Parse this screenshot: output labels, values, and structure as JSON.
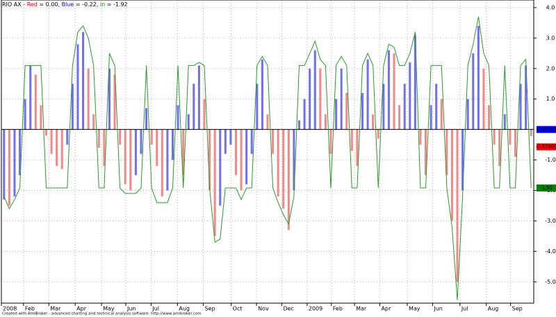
{
  "chart_data": {
    "type": "histogram-line",
    "title": [
      {
        "text": "RIO AX - "
      },
      {
        "text": "Red",
        "color": "#e00000"
      },
      {
        "text": " = 0.00, "
      },
      {
        "text": "Blue",
        "color": "#0000e0"
      },
      {
        "text": " = -0.22, "
      },
      {
        "text": "in",
        "color": "#008000"
      },
      {
        "text": " = -1.92"
      }
    ],
    "footer": "Created with AmiBroker - advanced charting and technical analysis software. http://www.amibroker.com",
    "xlim": [
      0,
      101
    ],
    "xticks": [
      {
        "value": 0,
        "label": "2008"
      },
      {
        "value": 4.2,
        "label": "Feb"
      },
      {
        "value": 9,
        "label": "Mar"
      },
      {
        "value": 14,
        "label": "Apr"
      },
      {
        "value": 19,
        "label": "May"
      },
      {
        "value": 23.6,
        "label": "Jun"
      },
      {
        "value": 28.4,
        "label": "Jul"
      },
      {
        "value": 33.4,
        "label": "Aug"
      },
      {
        "value": 38.3,
        "label": "Sep"
      },
      {
        "value": 43.6,
        "label": "Oct"
      },
      {
        "value": 48.4,
        "label": "Nov"
      },
      {
        "value": 53.2,
        "label": "Dec"
      },
      {
        "value": 58,
        "label": "2009"
      },
      {
        "value": 62.6,
        "label": "Feb"
      },
      {
        "value": 67,
        "label": "Mar"
      },
      {
        "value": 71.8,
        "label": "Apr"
      },
      {
        "value": 77,
        "label": "May"
      },
      {
        "value": 81.8,
        "label": "Jun"
      },
      {
        "value": 87,
        "label": "Jul"
      },
      {
        "value": 92,
        "label": "Aug"
      },
      {
        "value": 96.6,
        "label": "Sep"
      }
    ],
    "ylim": [
      -5.7,
      4.25
    ],
    "yticks": [
      {
        "value": -5,
        "label": "-5.0"
      },
      {
        "value": -4,
        "label": "-4.0"
      },
      {
        "value": -3,
        "label": "-3.0"
      },
      {
        "value": -2,
        "label": "-2.0"
      },
      {
        "value": -1,
        "label": "-1.0"
      },
      {
        "value": 1,
        "label": "1.0"
      },
      {
        "value": 2,
        "label": "2.0"
      },
      {
        "value": 3,
        "label": "3.0"
      },
      {
        "value": 4,
        "label": "4.0"
      }
    ],
    "grid": true,
    "histogram": {
      "up_color": "#7070f0",
      "down_color": "#f08a8a",
      "values": [
        -2.3,
        -2.5,
        -2.2,
        -1.5,
        1.0,
        2.1,
        1.8,
        0.8,
        -0.2,
        -0.8,
        -1.2,
        -1.3,
        -0.5,
        1.5,
        2.8,
        3.2,
        2.0,
        0.5,
        -0.6,
        -1.2,
        2.0,
        1.8,
        -0.5,
        -1.8,
        -2.0,
        -1.5,
        -0.8,
        0.7,
        -0.5,
        -1.2,
        -2.2,
        -2.0,
        -1.0,
        0.8,
        -1.5,
        0.5,
        1.5,
        2.1,
        1.0,
        -2.0,
        -3.5,
        -2.5,
        -0.8,
        -0.5,
        -1.5,
        -2.0,
        -1.8,
        -0.8,
        1.5,
        2.3,
        0.5,
        -0.8,
        -2.2,
        -2.6,
        -3.3,
        -2.0,
        0.3,
        1.0,
        2.0,
        2.6,
        2.0,
        0.5,
        -0.8,
        1.0,
        2.0,
        1.2,
        -0.7,
        -1.2,
        1.2,
        2.3,
        0.5,
        -0.3,
        1.5,
        2.6,
        2.5,
        0.8,
        1.5,
        2.2,
        3.1,
        -0.5,
        -1.5,
        0.8,
        1.5,
        1.0,
        -1.5,
        -3.0,
        -5.0,
        -2.0,
        1.0,
        2.5,
        3.4,
        2.0,
        0.8,
        -0.5,
        -1.2,
        0.5,
        -0.5,
        -0.9,
        1.5,
        2.1,
        -0.22
      ]
    },
    "line": {
      "color": "#2a9a2a",
      "values": [
        -2.2,
        -2.6,
        -2.3,
        -1.92,
        2.1,
        2.1,
        2.1,
        2.1,
        -1.92,
        -1.92,
        -1.92,
        -1.92,
        -1.92,
        2.1,
        3.2,
        3.4,
        3.0,
        2.1,
        -1.92,
        -1.92,
        2.5,
        2.1,
        -1.92,
        -2.1,
        -2.1,
        -2.1,
        -1.92,
        2.1,
        -1.92,
        -2.4,
        -2.4,
        -2.4,
        -1.92,
        2.1,
        -1.92,
        2.1,
        2.1,
        2.2,
        2.1,
        -1.92,
        -3.7,
        -3.6,
        -1.92,
        -1.92,
        -1.92,
        -2.3,
        -1.92,
        -1.92,
        2.1,
        2.4,
        2.1,
        -1.92,
        -2.4,
        -2.8,
        -3.1,
        -2.2,
        2.1,
        2.1,
        2.5,
        2.9,
        2.3,
        2.1,
        -1.92,
        2.1,
        2.4,
        2.1,
        -1.92,
        -1.92,
        2.1,
        2.5,
        2.1,
        -1.92,
        2.1,
        2.8,
        2.7,
        2.1,
        2.1,
        2.5,
        3.2,
        -1.92,
        -1.92,
        2.1,
        2.1,
        2.1,
        -1.92,
        -3.2,
        -5.6,
        -2.2,
        2.1,
        2.8,
        3.7,
        2.5,
        2.1,
        -1.92,
        -1.92,
        2.1,
        -1.92,
        -1.92,
        2.1,
        2.3,
        -1.92
      ]
    },
    "badges": [
      {
        "value": 0,
        "label": "0.00000",
        "color": "#0000ff"
      },
      {
        "value": -0.57,
        "label": "-0.57000",
        "color": "#ff0000"
      },
      {
        "value": -1.92,
        "label": "-1.92",
        "color": "#008000"
      }
    ]
  }
}
